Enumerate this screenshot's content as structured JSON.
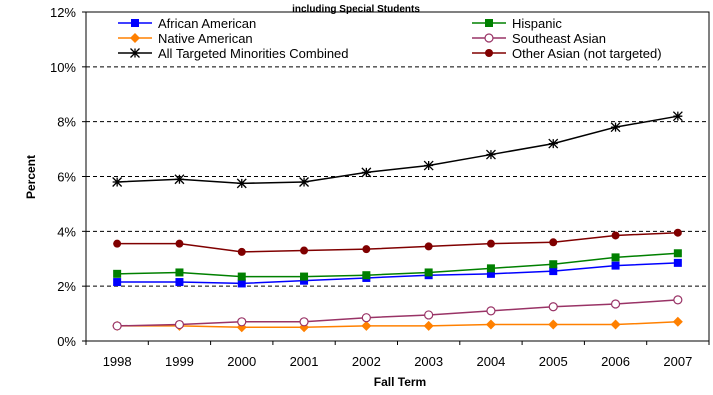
{
  "chart_data": {
    "type": "line",
    "title": "including Special Students",
    "xlabel": "Fall Term",
    "ylabel": "Percent",
    "x": [
      "1998",
      "1999",
      "2000",
      "2001",
      "2002",
      "2003",
      "2004",
      "2005",
      "2006",
      "2007"
    ],
    "ylim": [
      0,
      12
    ],
    "yticks": [
      0,
      2,
      4,
      6,
      8,
      10,
      12
    ],
    "ytick_labels": [
      "0%",
      "2%",
      "4%",
      "6%",
      "8%",
      "10%",
      "12%"
    ],
    "grid": "horizontal dashed",
    "legend": "top-left, two columns",
    "series": [
      {
        "name": "African American",
        "color": "#0000ff",
        "marker": "square",
        "values": [
          2.15,
          2.15,
          2.1,
          2.2,
          2.3,
          2.4,
          2.45,
          2.55,
          2.75,
          2.85
        ]
      },
      {
        "name": "Hispanic",
        "color": "#008000",
        "marker": "square",
        "values": [
          2.45,
          2.5,
          2.35,
          2.35,
          2.4,
          2.5,
          2.65,
          2.8,
          3.05,
          3.2
        ]
      },
      {
        "name": "Native American",
        "color": "#ff8000",
        "marker": "diamond",
        "values": [
          0.55,
          0.55,
          0.5,
          0.5,
          0.55,
          0.55,
          0.6,
          0.6,
          0.6,
          0.7
        ]
      },
      {
        "name": "Southeast Asian",
        "color": "#993366",
        "marker": "circle-open",
        "values": [
          0.55,
          0.6,
          0.7,
          0.7,
          0.85,
          0.95,
          1.1,
          1.25,
          1.35,
          1.5
        ]
      },
      {
        "name": "All Targeted Minorities Combined",
        "color": "#000000",
        "marker": "star",
        "values": [
          5.8,
          5.9,
          5.75,
          5.8,
          6.15,
          6.4,
          6.8,
          7.2,
          7.8,
          8.2
        ]
      },
      {
        "name": "Other Asian (not targeted)",
        "color": "#800000",
        "marker": "circle",
        "values": [
          3.55,
          3.55,
          3.25,
          3.3,
          3.35,
          3.45,
          3.55,
          3.6,
          3.85,
          3.95
        ]
      }
    ]
  }
}
